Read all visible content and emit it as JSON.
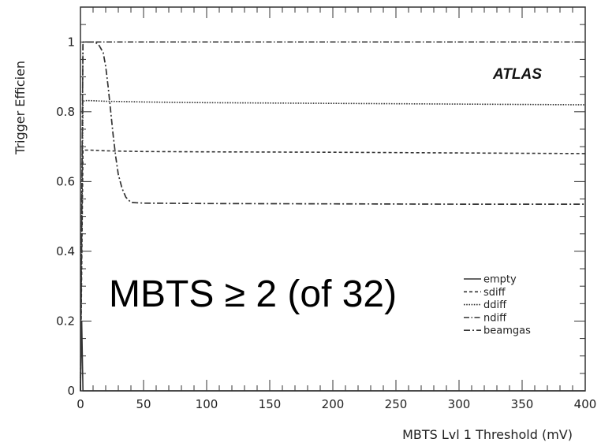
{
  "chart_data": {
    "type": "line",
    "xlabel": "MBTS Lvl 1 Threshold (mV)",
    "ylabel": "Trigger Efficien",
    "xlim": [
      0,
      400
    ],
    "ylim": [
      0,
      1.1
    ],
    "x_ticks": [
      "0",
      "50",
      "100",
      "150",
      "200",
      "250",
      "300",
      "350",
      "400"
    ],
    "y_ticks": [
      "0",
      "0.2",
      "0.4",
      "0.6",
      "0.8",
      "1"
    ],
    "label": "ATLAS",
    "annotation": "MBTS ≥ 2 (of 32)",
    "legend": "lower-right",
    "grid": false,
    "series": [
      {
        "name": "empty",
        "x": [
          0,
          1,
          2,
          400
        ],
        "y": [
          0,
          0.2,
          0,
          0
        ]
      },
      {
        "name": "sdiff",
        "x": [
          0,
          2,
          4,
          8,
          20,
          50,
          100,
          200,
          300,
          400
        ],
        "y": [
          0,
          0.69,
          0.69,
          0.69,
          0.688,
          0.686,
          0.685,
          0.684,
          0.682,
          0.68
        ]
      },
      {
        "name": "ddiff",
        "x": [
          0,
          2,
          4,
          8,
          20,
          50,
          100,
          200,
          300,
          400
        ],
        "y": [
          0,
          0.83,
          0.832,
          0.832,
          0.83,
          0.828,
          0.826,
          0.824,
          0.822,
          0.82
        ]
      },
      {
        "name": "ndiff",
        "x": [
          0,
          2,
          4,
          100,
          200,
          300,
          400
        ],
        "y": [
          0,
          1.0,
          1.0,
          1.0,
          1.0,
          1.0,
          1.0
        ]
      },
      {
        "name": "beamgas",
        "x": [
          0,
          2,
          4,
          10,
          14,
          18,
          20,
          22,
          24,
          26,
          28,
          30,
          33,
          36,
          40,
          50,
          100,
          200,
          300,
          400
        ],
        "y": [
          0,
          1.0,
          1.0,
          1.0,
          0.995,
          0.97,
          0.93,
          0.87,
          0.8,
          0.73,
          0.67,
          0.62,
          0.58,
          0.555,
          0.54,
          0.538,
          0.537,
          0.536,
          0.535,
          0.535
        ]
      }
    ],
    "styles": {
      "empty": {
        "dash": "",
        "width": 1.6
      },
      "sdiff": {
        "dash": "4 3",
        "width": 1.6
      },
      "ddiff": {
        "dash": "1.6 1.6",
        "width": 1.6
      },
      "ndiff": {
        "dash": "7 2.5 1.5 2.5",
        "width": 1.5
      },
      "beamgas": {
        "dash": "8 3 2 3",
        "width": 1.7
      }
    },
    "color": "#333333"
  }
}
